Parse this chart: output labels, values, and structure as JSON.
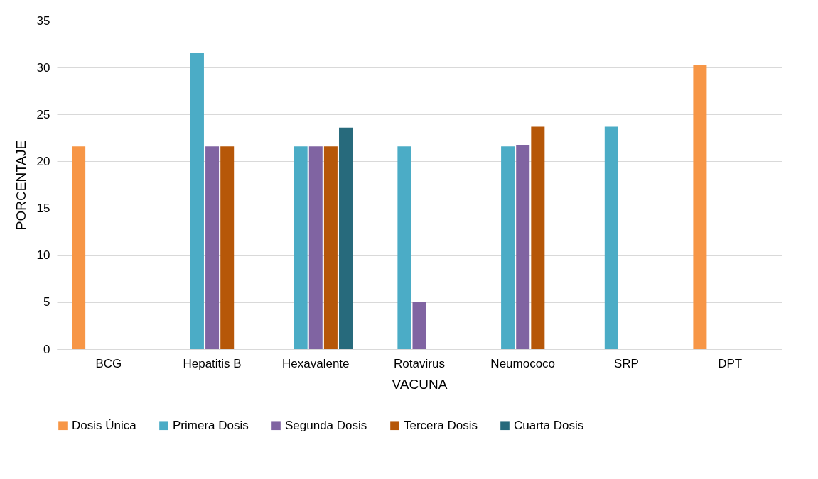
{
  "chart_data": {
    "type": "bar",
    "xlabel": "VACUNA",
    "ylabel": "PORCENTAJE",
    "categories": [
      "BCG",
      "Hepatitis B",
      "Hexavalente",
      "Rotavirus",
      "Neumococo",
      "SRP",
      "DPT"
    ],
    "series": [
      {
        "name": "Dosis Única",
        "color": "#f79646",
        "values": [
          21.6,
          null,
          null,
          null,
          null,
          null,
          30.3
        ]
      },
      {
        "name": "Primera Dosis",
        "color": "#4bacc6",
        "values": [
          null,
          31.6,
          21.6,
          21.6,
          21.6,
          23.7,
          null
        ]
      },
      {
        "name": "Segunda Dosis",
        "color": "#8064a2",
        "values": [
          null,
          21.6,
          21.6,
          5.0,
          21.7,
          null,
          null
        ]
      },
      {
        "name": "Tercera Dosis",
        "color": "#b65708",
        "values": [
          null,
          21.6,
          21.6,
          null,
          23.7,
          null,
          null
        ]
      },
      {
        "name": "Cuarta Dosis",
        "color": "#276a7c",
        "values": [
          null,
          null,
          23.6,
          null,
          null,
          null,
          null
        ]
      }
    ],
    "ylim": [
      0,
      35
    ],
    "yticks": [
      0,
      5,
      10,
      15,
      20,
      25,
      30,
      35
    ],
    "grid": "y",
    "legend": "bottom"
  }
}
